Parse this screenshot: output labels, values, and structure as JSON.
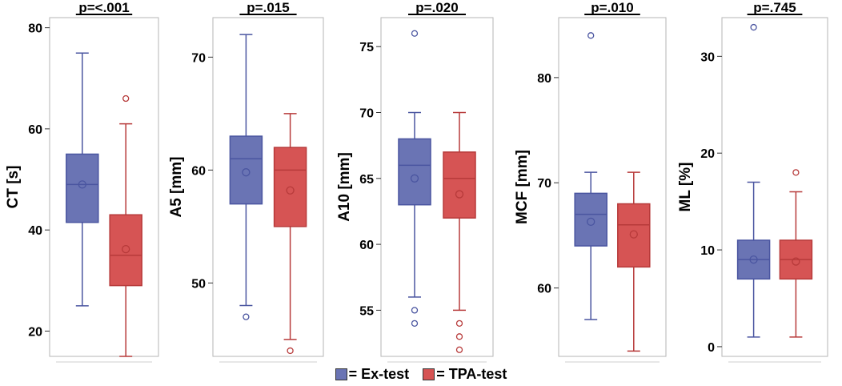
{
  "chart_data": [
    {
      "type": "box",
      "ylabel": "CT [s]",
      "pvalue": "p=<.001",
      "ylim": [
        15,
        82
      ],
      "yticks": [
        20,
        40,
        60,
        80
      ],
      "series": [
        {
          "name": "Ex-test",
          "whisker_low": 25,
          "q1": 41.5,
          "median": 49,
          "q3": 55,
          "whisker_high": 75,
          "mean": 49,
          "outliers": []
        },
        {
          "name": "TPA-test",
          "whisker_low": 15,
          "q1": 29,
          "median": 35,
          "q3": 43,
          "whisker_high": 61,
          "mean": 36.2,
          "outliers": [
            66
          ]
        }
      ]
    },
    {
      "type": "box",
      "ylabel": "A5 [mm]",
      "pvalue": "p=.015",
      "ylim": [
        43.5,
        73.5
      ],
      "yticks": [
        50,
        60,
        70
      ],
      "series": [
        {
          "name": "Ex-test",
          "whisker_low": 48,
          "q1": 57,
          "median": 61,
          "q3": 63,
          "whisker_high": 72,
          "mean": 59.8,
          "outliers": [
            47
          ]
        },
        {
          "name": "TPA-test",
          "whisker_low": 45,
          "q1": 55,
          "median": 60,
          "q3": 62,
          "whisker_high": 65,
          "mean": 58.2,
          "outliers": [
            44
          ]
        }
      ]
    },
    {
      "type": "box",
      "ylabel": "A10 [mm]",
      "pvalue": "p=.020",
      "ylim": [
        51.5,
        77.2
      ],
      "yticks": [
        55,
        60,
        65,
        70,
        75
      ],
      "series": [
        {
          "name": "Ex-test",
          "whisker_low": 56,
          "q1": 63,
          "median": 66,
          "q3": 68,
          "whisker_high": 70,
          "mean": 65,
          "outliers": [
            55,
            54,
            76
          ]
        },
        {
          "name": "TPA-test",
          "whisker_low": 55,
          "q1": 62,
          "median": 65,
          "q3": 67,
          "whisker_high": 70,
          "mean": 63.8,
          "outliers": [
            54,
            53,
            52
          ]
        }
      ]
    },
    {
      "type": "box",
      "ylabel": "MCF [mm]",
      "pvalue": "p=.010",
      "ylim": [
        53.5,
        85.7
      ],
      "yticks": [
        60,
        70,
        80
      ],
      "series": [
        {
          "name": "Ex-test",
          "whisker_low": 57,
          "q1": 64,
          "median": 67,
          "q3": 69,
          "whisker_high": 71,
          "mean": 66.3,
          "outliers": [
            84
          ]
        },
        {
          "name": "TPA-test",
          "whisker_low": 54,
          "q1": 62,
          "median": 66,
          "q3": 68,
          "whisker_high": 71,
          "mean": 65.1,
          "outliers": []
        }
      ]
    },
    {
      "type": "box",
      "ylabel": "ML [%]",
      "pvalue": "p=.745",
      "ylim": [
        -1,
        34
      ],
      "yticks": [
        0,
        10,
        20,
        30
      ],
      "series": [
        {
          "name": "Ex-test",
          "whisker_low": 1,
          "q1": 7,
          "median": 9,
          "q3": 11,
          "whisker_high": 17,
          "mean": 9,
          "outliers": [
            33
          ]
        },
        {
          "name": "TPA-test",
          "whisker_low": 1,
          "q1": 7,
          "median": 9,
          "q3": 11,
          "whisker_high": 16,
          "mean": 8.8,
          "outliers": [
            18
          ]
        }
      ]
    }
  ],
  "legend": {
    "items": [
      {
        "prefix": "=",
        "label": "Ex-test",
        "fill": "#6a74b4",
        "stroke": "#4a55a0"
      },
      {
        "prefix": "=",
        "label": "TPA-test",
        "fill": "#d65454",
        "stroke": "#b73a3a"
      }
    ]
  },
  "colors": {
    "ex_fill": "#6a74b4",
    "ex_stroke": "#4a55a0",
    "tpa_fill": "#d65454",
    "tpa_stroke": "#b73a3a",
    "frame": "#b5b5b5"
  }
}
